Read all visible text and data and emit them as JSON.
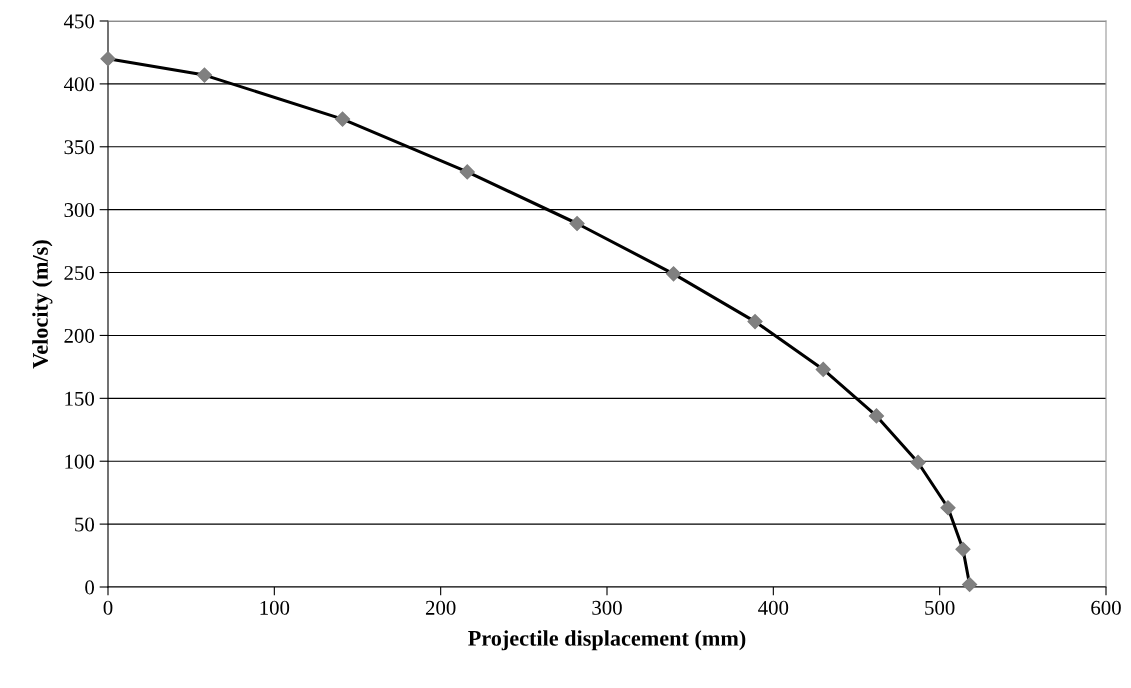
{
  "chart_data": {
    "type": "line",
    "xlabel": "Projectile displacement (mm)",
    "ylabel": "Velocity (m/s)",
    "x": [
      0,
      58,
      141,
      216,
      282,
      340,
      389,
      430,
      462,
      487,
      505,
      514,
      518
    ],
    "series": [
      {
        "color": "#000000",
        "values": [
          420,
          407,
          372,
          330,
          289,
          249,
          211,
          173,
          136,
          99,
          63,
          30,
          2
        ]
      },
      {
        "type": "scatter",
        "color": "#808080",
        "values": [
          420,
          407,
          372,
          330,
          289,
          249,
          211,
          173,
          136,
          99,
          63,
          30,
          2
        ]
      }
    ],
    "xlim": [
      0,
      600
    ],
    "xticks": [
      0,
      100,
      200,
      300,
      400,
      500,
      600
    ],
    "ylim": [
      0,
      450
    ],
    "yticks": [
      0,
      50,
      100,
      150,
      200,
      250,
      300,
      350,
      400,
      450
    ],
    "grid": "y",
    "legend": false,
    "marker": "diamond",
    "line_style": "solid"
  }
}
